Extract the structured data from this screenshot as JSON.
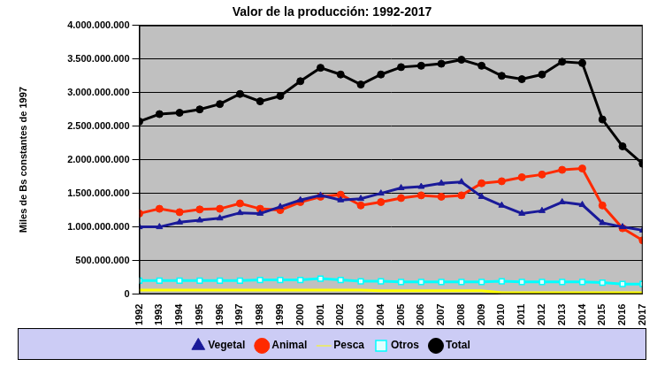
{
  "chart_data": {
    "type": "line",
    "title": "Valor de la producción: 1992-2017",
    "y_label": "Miles de Bs constantes de 1997",
    "categories": [
      "1992",
      "1993",
      "1994",
      "1995",
      "1996",
      "1997",
      "1998",
      "1999",
      "2000",
      "2001",
      "2002",
      "2003",
      "2004",
      "2005",
      "2006",
      "2007",
      "2008",
      "2009",
      "2010",
      "2011",
      "2012",
      "2013",
      "2014",
      "2015",
      "2016",
      "2017"
    ],
    "series": [
      {
        "name": "Vegetal",
        "color": "#1a1a99",
        "marker": "triangle",
        "values": [
          1000000000,
          1000000000,
          1070000000,
          1100000000,
          1130000000,
          1210000000,
          1200000000,
          1300000000,
          1400000000,
          1470000000,
          1400000000,
          1420000000,
          1500000000,
          1580000000,
          1600000000,
          1650000000,
          1670000000,
          1450000000,
          1320000000,
          1200000000,
          1240000000,
          1370000000,
          1330000000,
          1060000000,
          1000000000,
          950000000
        ]
      },
      {
        "name": "Animal",
        "color": "#ff2a00",
        "marker": "circle",
        "values": [
          1200000000,
          1270000000,
          1220000000,
          1260000000,
          1270000000,
          1350000000,
          1270000000,
          1250000000,
          1370000000,
          1450000000,
          1480000000,
          1320000000,
          1370000000,
          1430000000,
          1470000000,
          1450000000,
          1470000000,
          1650000000,
          1680000000,
          1740000000,
          1780000000,
          1850000000,
          1870000000,
          1320000000,
          980000000,
          800000000
        ]
      },
      {
        "name": "Pesca",
        "color": "#ffff00",
        "marker": "none",
        "values": [
          60000000,
          60000000,
          60000000,
          60000000,
          60000000,
          60000000,
          60000000,
          60000000,
          60000000,
          60000000,
          60000000,
          60000000,
          50000000,
          50000000,
          50000000,
          50000000,
          50000000,
          50000000,
          20000000,
          20000000,
          20000000,
          20000000,
          20000000,
          20000000,
          20000000,
          20000000
        ]
      },
      {
        "name": "Otros",
        "color": "#00ffff",
        "marker": "square",
        "values": [
          200000000,
          200000000,
          200000000,
          200000000,
          200000000,
          200000000,
          210000000,
          210000000,
          210000000,
          230000000,
          210000000,
          190000000,
          190000000,
          180000000,
          180000000,
          180000000,
          180000000,
          180000000,
          190000000,
          180000000,
          180000000,
          180000000,
          180000000,
          170000000,
          150000000,
          150000000
        ]
      },
      {
        "name": "Total",
        "color": "#000000",
        "marker": "circle",
        "values": [
          2570000000,
          2680000000,
          2700000000,
          2750000000,
          2830000000,
          2980000000,
          2870000000,
          2950000000,
          3170000000,
          3370000000,
          3270000000,
          3120000000,
          3270000000,
          3380000000,
          3400000000,
          3430000000,
          3490000000,
          3400000000,
          3250000000,
          3200000000,
          3270000000,
          3460000000,
          3440000000,
          2600000000,
          2200000000,
          1940000000
        ]
      }
    ],
    "ylim": [
      0,
      4000000000
    ],
    "yticks": [
      0,
      {
        "value": 500000000,
        "label": "500.000.000"
      },
      {
        "value": 1000000000,
        "label": "1.000.000.000"
      },
      {
        "value": 1500000000,
        "label": "1.500.000.000"
      },
      {
        "value": 2000000000,
        "label": "2.000.000.000"
      },
      {
        "value": 2500000000,
        "label": "2.500.000.000"
      },
      {
        "value": 3000000000,
        "label": "3.000.000.000"
      },
      {
        "value": 3500000000,
        "label": "3.500.000.000"
      },
      {
        "value": 4000000000,
        "label": "4.000.000.000"
      }
    ],
    "grid": true,
    "legend": "bottom"
  }
}
